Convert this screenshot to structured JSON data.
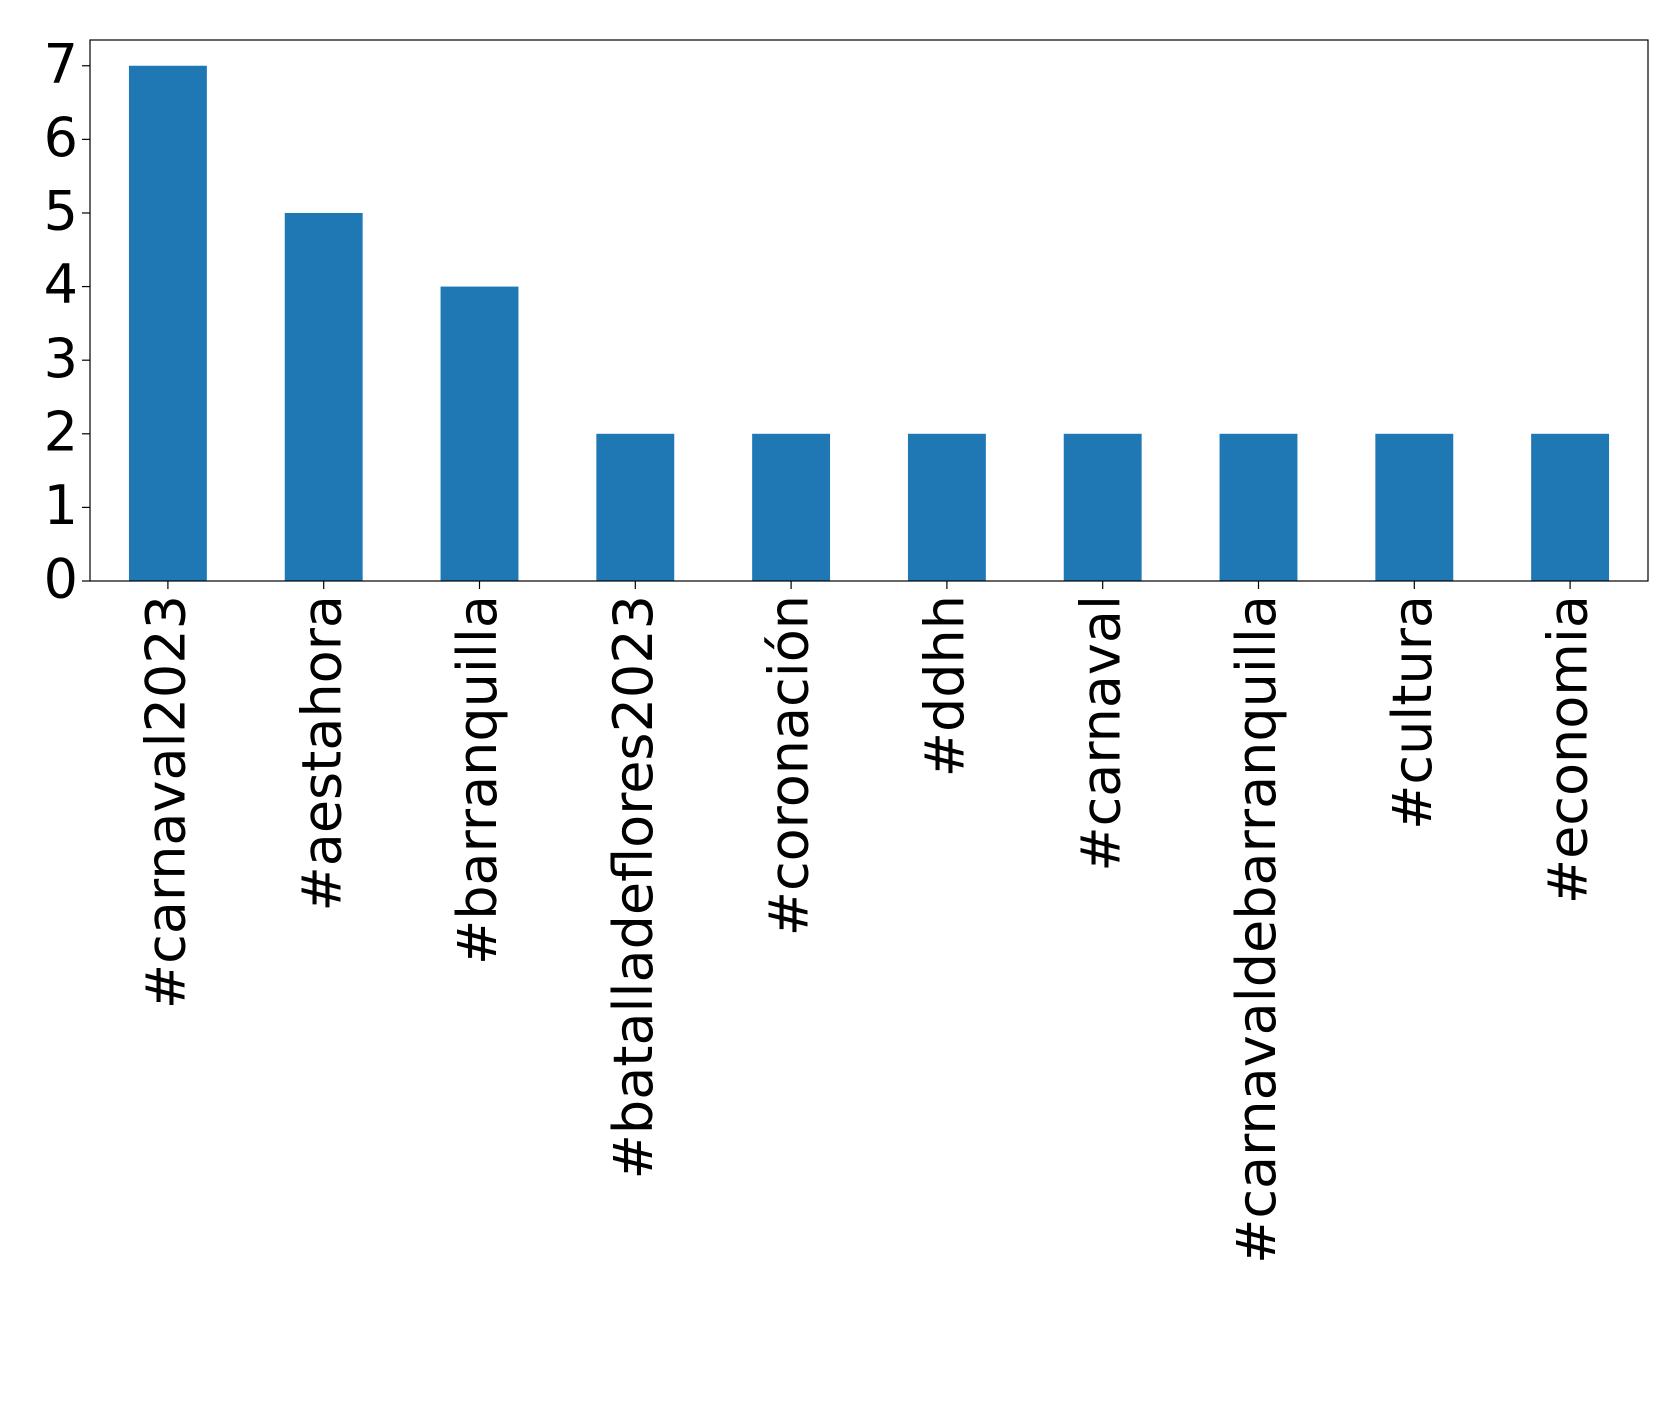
{
  "chart_data": {
    "type": "bar",
    "categories": [
      "#carnaval2023",
      "#aestahora",
      "#barranquilla",
      "#batalladeflores2023",
      "#coronación",
      "#ddhh",
      "#carnaval",
      "#carnavaldebarranquilla",
      "#cultura",
      "#economia"
    ],
    "values": [
      7,
      5,
      4,
      2,
      2,
      2,
      2,
      2,
      2,
      2
    ],
    "color": "#1f77b4",
    "ylim": [
      0,
      7.35
    ],
    "yticks": [
      0,
      1,
      2,
      3,
      4,
      5,
      6,
      7
    ],
    "grid": false
  }
}
